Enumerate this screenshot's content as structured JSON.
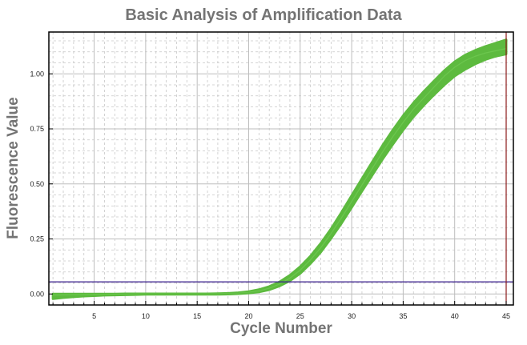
{
  "chart_data": {
    "type": "line",
    "title": "Basic Analysis of Amplification Data",
    "xlabel": "Cycle Number",
    "ylabel": "Fluorescence Value",
    "xlim": [
      0.6,
      45.7
    ],
    "ylim": [
      -0.05,
      1.19
    ],
    "xticks": [
      5,
      10,
      15,
      20,
      25,
      30,
      35,
      40,
      45
    ],
    "yticks": [
      0.0,
      0.25,
      0.5,
      0.75,
      1.0
    ],
    "ytick_labels": [
      "0.00",
      "0.25",
      "0.50",
      "0.75",
      "1.00"
    ],
    "grid": true,
    "threshold": {
      "value": 0.055,
      "color": "#3a1f8c"
    },
    "marker_line": {
      "x": 45,
      "color": "#8b1a1a"
    },
    "curve_color": "#5dba3f",
    "x": [
      1,
      2,
      3,
      4,
      5,
      6,
      7,
      8,
      9,
      10,
      11,
      12,
      13,
      14,
      15,
      16,
      17,
      18,
      19,
      20,
      21,
      22,
      23,
      24,
      25,
      26,
      27,
      28,
      29,
      30,
      31,
      32,
      33,
      34,
      35,
      36,
      37,
      38,
      39,
      40,
      41,
      42,
      43,
      44,
      45
    ],
    "series": [
      {
        "values": [
          0,
          0,
          0,
          0,
          0,
          0,
          0,
          0.001,
          0.001,
          0.001,
          0.001,
          0.001,
          0.001,
          0.001,
          0.001,
          0.001,
          0.002,
          0.003,
          0.006,
          0.011,
          0.02,
          0.034,
          0.055,
          0.085,
          0.124,
          0.172,
          0.23,
          0.296,
          0.37,
          0.447,
          0.524,
          0.6,
          0.675,
          0.745,
          0.81,
          0.868,
          0.92,
          0.968,
          1.015,
          1.055,
          1.085,
          1.107,
          1.125,
          1.14,
          1.155
        ]
      },
      {
        "values": [
          -0.005,
          -0.004,
          -0.003,
          -0.003,
          -0.002,
          -0.002,
          -0.001,
          -0.001,
          0,
          0,
          0,
          0,
          0,
          0,
          0,
          0,
          0,
          0.001,
          0.003,
          0.007,
          0.014,
          0.026,
          0.045,
          0.072,
          0.108,
          0.155,
          0.21,
          0.275,
          0.345,
          0.42,
          0.495,
          0.57,
          0.645,
          0.715,
          0.78,
          0.84,
          0.89,
          0.94,
          0.99,
          1.03,
          1.06,
          1.08,
          1.095,
          1.105,
          1.115
        ]
      },
      {
        "values": [
          -0.022,
          -0.017,
          -0.013,
          -0.01,
          -0.008,
          -0.006,
          -0.005,
          -0.004,
          -0.003,
          -0.002,
          -0.002,
          -0.002,
          -0.002,
          -0.002,
          -0.002,
          -0.002,
          -0.002,
          -0.001,
          0.001,
          0.004,
          0.009,
          0.019,
          0.036,
          0.06,
          0.093,
          0.138,
          0.19,
          0.253,
          0.32,
          0.393,
          0.467,
          0.54,
          0.612,
          0.68,
          0.745,
          0.805,
          0.857,
          0.905,
          0.95,
          0.99,
          1.02,
          1.045,
          1.065,
          1.08,
          1.09
        ]
      }
    ]
  }
}
